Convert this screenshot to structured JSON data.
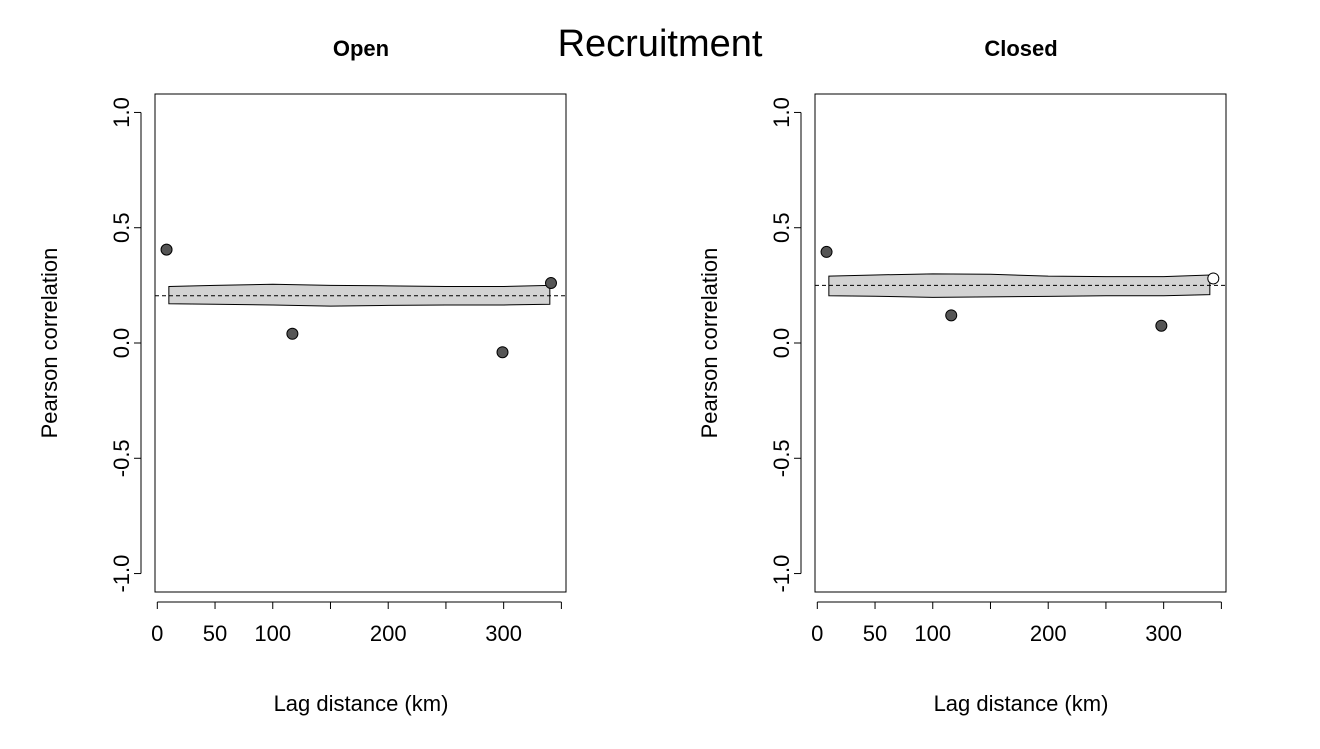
{
  "title": "Recruitment",
  "chart_data": [
    {
      "type": "scatter",
      "title": "Open",
      "xlabel": "Lag distance (km)",
      "ylabel": "Pearson correlation",
      "xlim": [
        -2,
        354
      ],
      "ylim": [
        -1.08,
        1.08
      ],
      "x_tick_labels": [
        {
          "value": 0,
          "label": "0"
        },
        {
          "value": 50,
          "label": "50"
        },
        {
          "value": 100,
          "label": "100"
        },
        {
          "value": 200,
          "label": "200"
        },
        {
          "value": 300,
          "label": "300"
        }
      ],
      "x_minor_ticks": [
        150,
        250,
        350
      ],
      "y_ticks": [
        -1.0,
        -0.5,
        0.0,
        0.5,
        1.0
      ],
      "y_tick_labels": [
        "-1.0",
        "-0.5",
        "0.0",
        "0.5",
        "1.0"
      ],
      "reference_line": 0.205,
      "envelope": {
        "x": [
          10,
          50,
          100,
          150,
          200,
          250,
          300,
          340
        ],
        "upper": [
          0.245,
          0.25,
          0.255,
          0.25,
          0.248,
          0.245,
          0.245,
          0.25
        ],
        "lower": [
          0.17,
          0.168,
          0.165,
          0.16,
          0.163,
          0.165,
          0.165,
          0.168
        ]
      },
      "points": [
        {
          "x": 8,
          "y": 0.405,
          "significant": true
        },
        {
          "x": 117,
          "y": 0.04,
          "significant": true
        },
        {
          "x": 299,
          "y": -0.04,
          "significant": true
        },
        {
          "x": 341,
          "y": 0.26,
          "significant": true
        }
      ],
      "colors": {
        "point_fill": "#555555",
        "band_fill": "#d3d3d3"
      }
    },
    {
      "type": "scatter",
      "title": "Closed",
      "xlabel": "Lag distance (km)",
      "ylabel": "Pearson correlation",
      "xlim": [
        -2,
        354
      ],
      "ylim": [
        -1.08,
        1.08
      ],
      "x_tick_labels": [
        {
          "value": 0,
          "label": "0"
        },
        {
          "value": 50,
          "label": "50"
        },
        {
          "value": 100,
          "label": "100"
        },
        {
          "value": 200,
          "label": "200"
        },
        {
          "value": 300,
          "label": "300"
        }
      ],
      "x_minor_ticks": [
        150,
        250,
        350
      ],
      "y_ticks": [
        -1.0,
        -0.5,
        0.0,
        0.5,
        1.0
      ],
      "y_tick_labels": [
        "-1.0",
        "-0.5",
        "0.0",
        "0.5",
        "1.0"
      ],
      "reference_line": 0.25,
      "envelope": {
        "x": [
          10,
          50,
          100,
          150,
          200,
          250,
          300,
          340
        ],
        "upper": [
          0.29,
          0.295,
          0.3,
          0.298,
          0.29,
          0.288,
          0.288,
          0.295
        ],
        "lower": [
          0.205,
          0.203,
          0.198,
          0.2,
          0.202,
          0.205,
          0.205,
          0.21
        ]
      },
      "points": [
        {
          "x": 8,
          "y": 0.395,
          "significant": true
        },
        {
          "x": 116,
          "y": 0.12,
          "significant": true
        },
        {
          "x": 298,
          "y": 0.075,
          "significant": true
        },
        {
          "x": 343,
          "y": 0.28,
          "significant": false
        }
      ],
      "colors": {
        "point_fill": "#555555",
        "band_fill": "#d3d3d3",
        "open_point_fill": "#ffffff"
      }
    }
  ]
}
